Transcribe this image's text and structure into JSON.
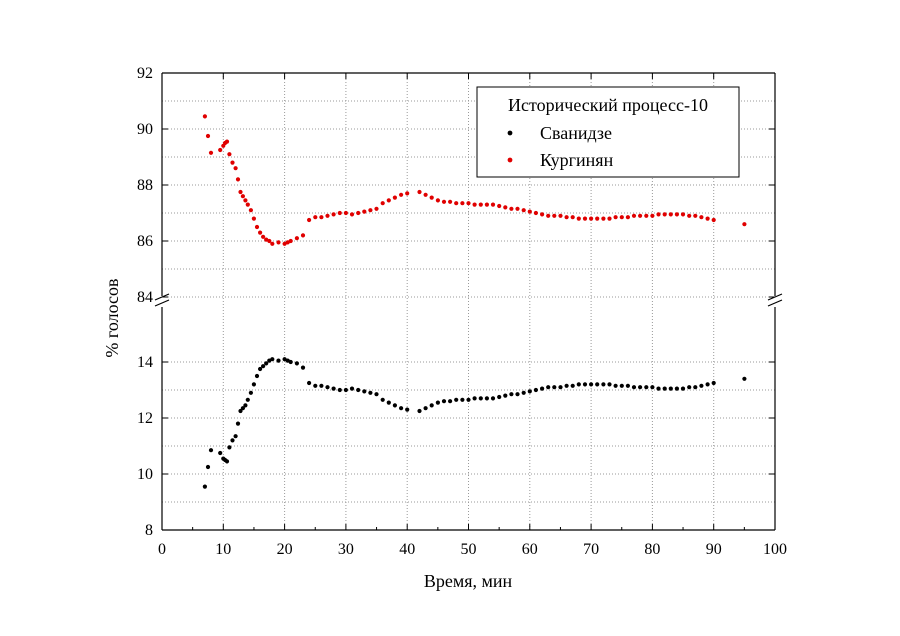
{
  "chart_data": {
    "type": "scatter",
    "xlabel": "Время, мин",
    "ylabel": "% голосов",
    "xlim": [
      0,
      100
    ],
    "x_ticks": [
      0,
      10,
      20,
      30,
      40,
      50,
      60,
      70,
      80,
      90,
      100
    ],
    "y_axis_break": true,
    "ylim_upper": [
      84,
      92
    ],
    "ylim_lower": [
      8,
      15
    ],
    "y_ticks_upper": [
      84,
      86,
      88,
      90,
      92
    ],
    "y_ticks_lower": [
      8,
      10,
      12,
      14
    ],
    "grid": true,
    "legend": {
      "title": "Исторический процесс-10",
      "placement": "top-right"
    },
    "series": [
      {
        "name": "Сванидзе",
        "color": "#000000",
        "x": [
          7,
          7.5,
          8,
          9.5,
          10,
          10.3,
          10.6,
          11,
          11.5,
          12,
          12.4,
          12.8,
          13.2,
          13.6,
          14,
          14.5,
          15,
          15.5,
          16,
          16.5,
          17,
          17.5,
          18,
          19,
          20,
          20.5,
          21,
          22,
          23,
          24,
          25,
          26,
          27,
          28,
          29,
          30,
          31,
          32,
          33,
          34,
          35,
          36,
          37,
          38,
          39,
          40,
          42,
          43,
          44,
          45,
          46,
          47,
          48,
          49,
          50,
          51,
          52,
          53,
          54,
          55,
          56,
          57,
          58,
          59,
          60,
          61,
          62,
          63,
          64,
          65,
          66,
          67,
          68,
          69,
          70,
          71,
          72,
          73,
          74,
          75,
          76,
          77,
          78,
          79,
          80,
          81,
          82,
          83,
          84,
          85,
          86,
          87,
          88,
          89,
          90,
          95
        ],
        "y": [
          9.55,
          10.25,
          10.85,
          10.75,
          10.55,
          10.5,
          10.45,
          10.95,
          11.2,
          11.35,
          11.8,
          12.25,
          12.35,
          12.45,
          12.65,
          12.9,
          13.2,
          13.5,
          13.75,
          13.85,
          13.95,
          14.05,
          14.1,
          14.05,
          14.1,
          14.05,
          14.0,
          13.95,
          13.8,
          13.25,
          13.15,
          13.15,
          13.1,
          13.05,
          13.0,
          13.0,
          13.05,
          13.0,
          12.95,
          12.9,
          12.85,
          12.65,
          12.55,
          12.45,
          12.35,
          12.3,
          12.25,
          12.35,
          12.45,
          12.55,
          12.6,
          12.6,
          12.65,
          12.65,
          12.65,
          12.7,
          12.7,
          12.7,
          12.7,
          12.75,
          12.8,
          12.85,
          12.85,
          12.9,
          12.95,
          13.0,
          13.05,
          13.1,
          13.1,
          13.1,
          13.15,
          13.15,
          13.2,
          13.2,
          13.2,
          13.2,
          13.2,
          13.2,
          13.15,
          13.15,
          13.15,
          13.1,
          13.1,
          13.1,
          13.1,
          13.05,
          13.05,
          13.05,
          13.05,
          13.05,
          13.1,
          13.1,
          13.15,
          13.2,
          13.25,
          13.4
        ]
      },
      {
        "name": "Кургинян",
        "color": "#e00000",
        "x": [
          7,
          7.5,
          8,
          9.5,
          10,
          10.3,
          10.6,
          11,
          11.5,
          12,
          12.4,
          12.8,
          13.2,
          13.6,
          14,
          14.5,
          15,
          15.5,
          16,
          16.5,
          17,
          17.5,
          18,
          19,
          20,
          20.5,
          21,
          22,
          23,
          24,
          25,
          26,
          27,
          28,
          29,
          30,
          31,
          32,
          33,
          34,
          35,
          36,
          37,
          38,
          39,
          40,
          42,
          43,
          44,
          45,
          46,
          47,
          48,
          49,
          50,
          51,
          52,
          53,
          54,
          55,
          56,
          57,
          58,
          59,
          60,
          61,
          62,
          63,
          64,
          65,
          66,
          67,
          68,
          69,
          70,
          71,
          72,
          73,
          74,
          75,
          76,
          77,
          78,
          79,
          80,
          81,
          82,
          83,
          84,
          85,
          86,
          87,
          88,
          89,
          90,
          95
        ],
        "y": [
          90.45,
          89.75,
          89.15,
          89.25,
          89.4,
          89.5,
          89.55,
          89.1,
          88.8,
          88.6,
          88.2,
          87.75,
          87.6,
          87.45,
          87.3,
          87.1,
          86.8,
          86.5,
          86.3,
          86.15,
          86.05,
          86.0,
          85.9,
          85.95,
          85.9,
          85.95,
          86.0,
          86.1,
          86.2,
          86.75,
          86.85,
          86.85,
          86.9,
          86.95,
          87.0,
          87.0,
          86.95,
          87.0,
          87.05,
          87.1,
          87.15,
          87.35,
          87.45,
          87.55,
          87.65,
          87.7,
          87.75,
          87.65,
          87.55,
          87.45,
          87.4,
          87.4,
          87.35,
          87.35,
          87.35,
          87.3,
          87.3,
          87.3,
          87.3,
          87.25,
          87.2,
          87.15,
          87.15,
          87.1,
          87.05,
          87.0,
          86.95,
          86.9,
          86.9,
          86.9,
          86.85,
          86.85,
          86.8,
          86.8,
          86.8,
          86.8,
          86.8,
          86.8,
          86.85,
          86.85,
          86.85,
          86.9,
          86.9,
          86.9,
          86.9,
          86.95,
          86.95,
          86.95,
          86.95,
          86.95,
          86.9,
          86.9,
          86.85,
          86.8,
          86.75,
          86.6
        ]
      }
    ]
  }
}
